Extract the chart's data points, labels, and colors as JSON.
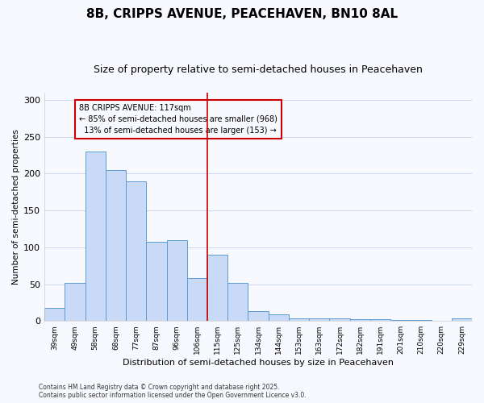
{
  "title": "8B, CRIPPS AVENUE, PEACEHAVEN, BN10 8AL",
  "subtitle": "Size of property relative to semi-detached houses in Peacehaven",
  "xlabel": "Distribution of semi-detached houses by size in Peacehaven",
  "ylabel": "Number of semi-detached properties",
  "categories": [
    "39sqm",
    "49sqm",
    "58sqm",
    "68sqm",
    "77sqm",
    "87sqm",
    "96sqm",
    "106sqm",
    "115sqm",
    "125sqm",
    "134sqm",
    "144sqm",
    "153sqm",
    "163sqm",
    "172sqm",
    "182sqm",
    "191sqm",
    "201sqm",
    "210sqm",
    "220sqm",
    "229sqm"
  ],
  "values": [
    18,
    52,
    230,
    205,
    190,
    108,
    110,
    58,
    90,
    52,
    13,
    9,
    4,
    4,
    3,
    2,
    2,
    1,
    1,
    0,
    3
  ],
  "bar_color": "#c8daf5",
  "bar_edge_color": "#5b9bd5",
  "property_label": "8B CRIPPS AVENUE: 117sqm",
  "pct_smaller": 85,
  "n_smaller": 968,
  "pct_larger": 13,
  "n_larger": 153,
  "vline_position": 8.5,
  "vline_color": "#cc0000",
  "annotation_box_color": "#cc0000",
  "ylim": [
    0,
    310
  ],
  "yticks": [
    0,
    50,
    100,
    150,
    200,
    250,
    300
  ],
  "background_color": "#f7f9fe",
  "grid_color": "#d0d8ee",
  "title_fontsize": 11,
  "subtitle_fontsize": 9,
  "footer_line1": "Contains HM Land Registry data © Crown copyright and database right 2025.",
  "footer_line2": "Contains public sector information licensed under the Open Government Licence v3.0."
}
